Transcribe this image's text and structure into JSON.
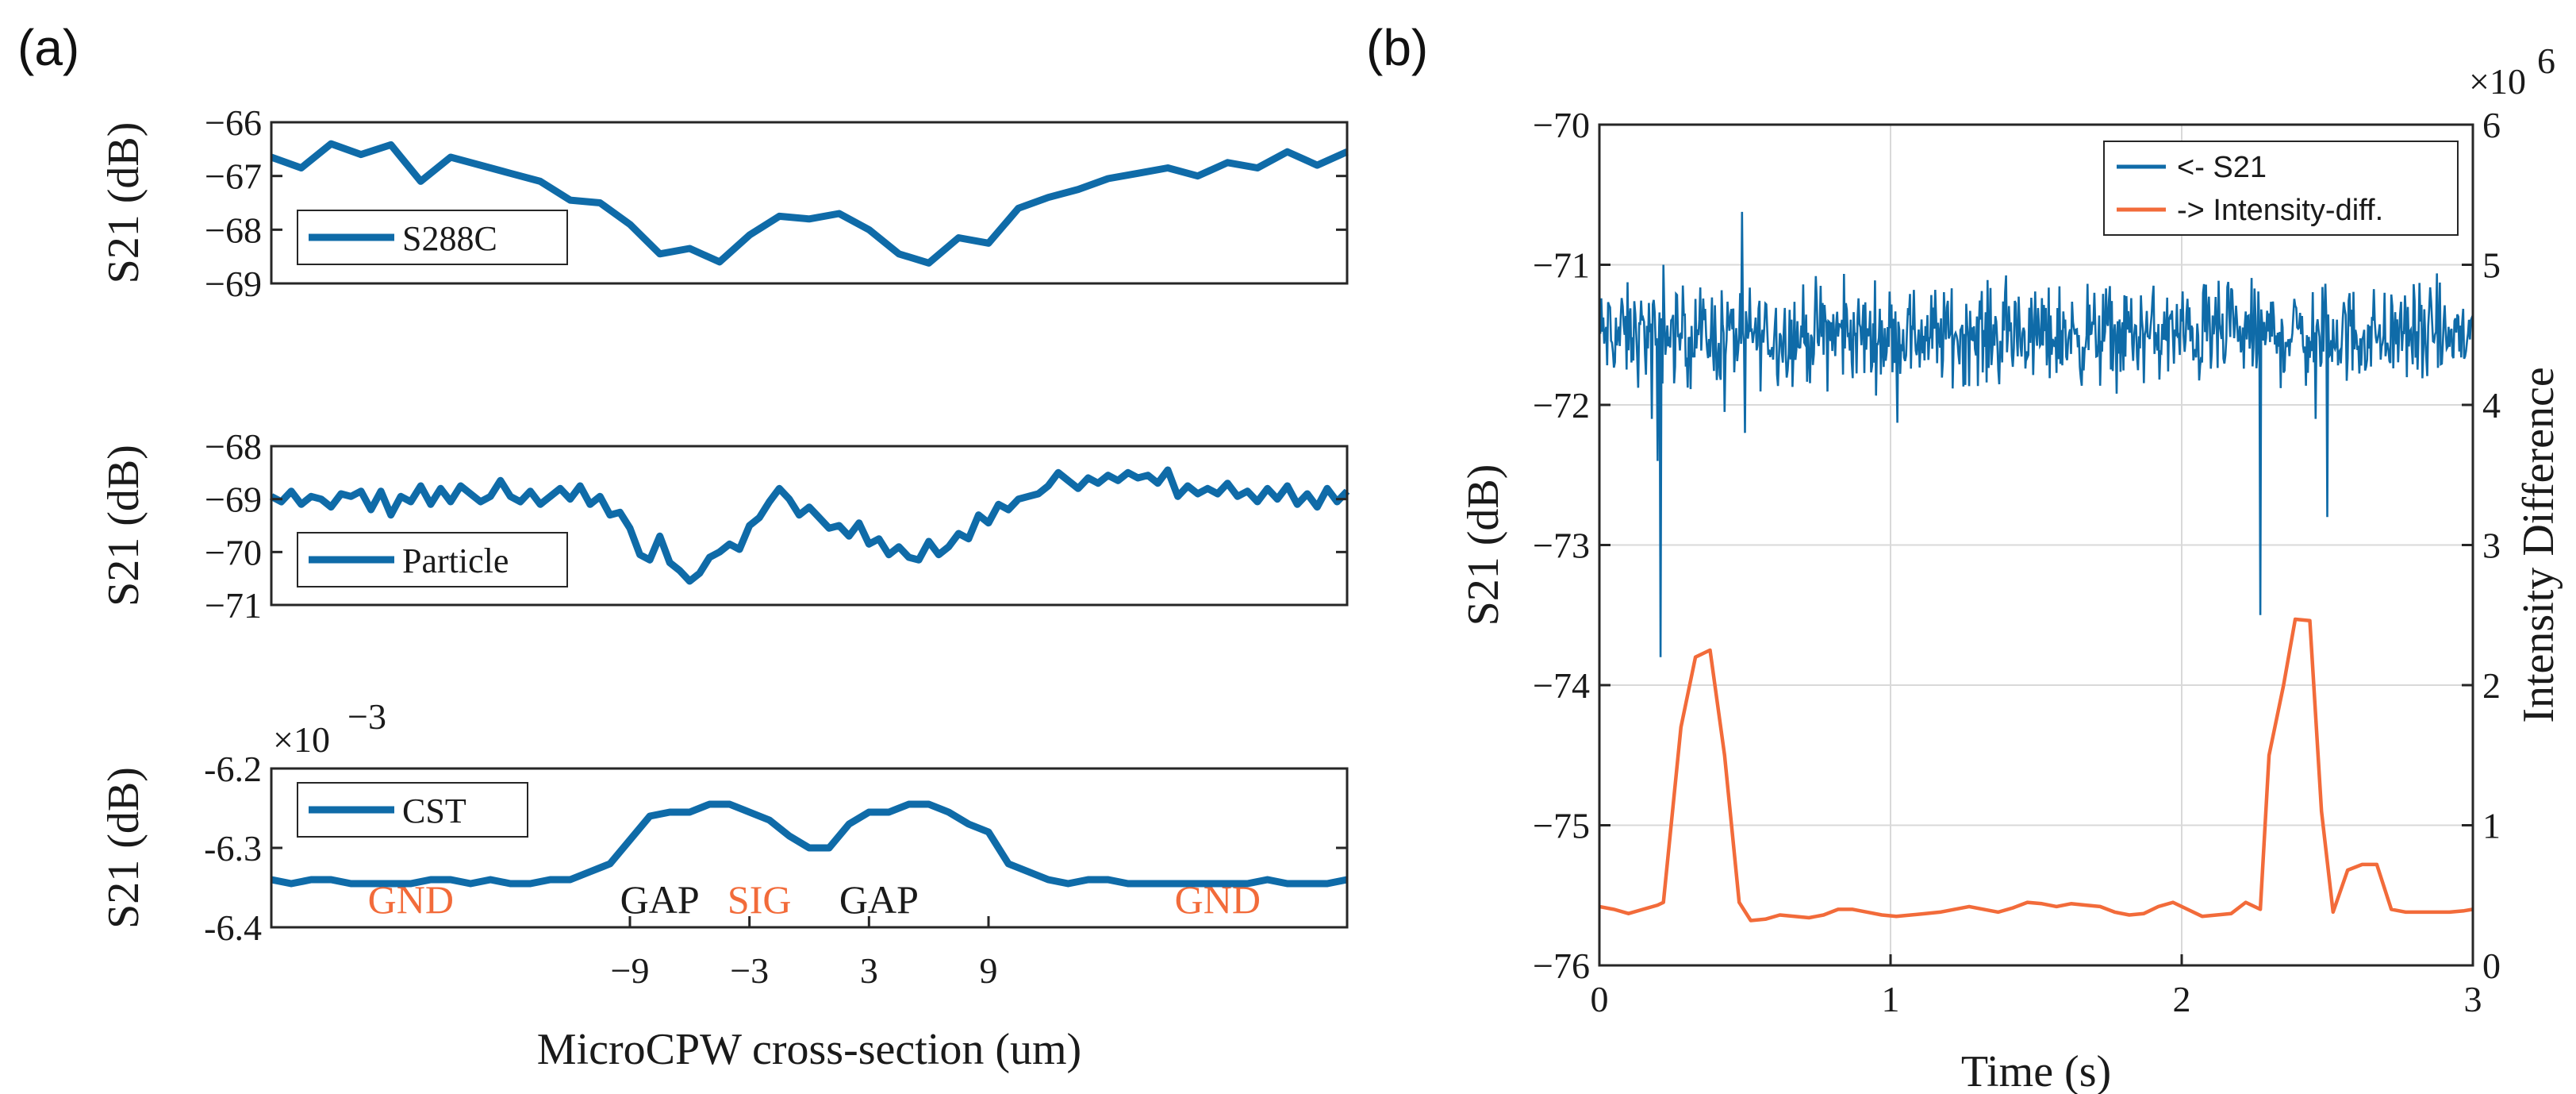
{
  "figure": {
    "panel_a_label": "(a)",
    "panel_b_label": "(b)"
  },
  "colors": {
    "blue": "#0f6ba8",
    "orange": "#f26b3a",
    "annotation_orange": "#f26b3a",
    "annotation_black": "#1a1a1a"
  },
  "chart_data": [
    {
      "id": "s288c",
      "type": "line",
      "title": "",
      "ylabel": "S21 (dB)",
      "xlabel": "",
      "xlim": [
        -27,
        27
      ],
      "ylim": [
        -69,
        -66
      ],
      "yticks": [
        -66,
        -67,
        -68,
        -69
      ],
      "ytick_labels": [
        "−66",
        "−67",
        "−68",
        "−69"
      ],
      "legend": "S288C",
      "legend_position": "left",
      "series": [
        {
          "name": "S288C",
          "x": [
            -27,
            -25.5,
            -24,
            -22.5,
            -21,
            -19.5,
            -18,
            -16.5,
            -15,
            -13.5,
            -12,
            -10.5,
            -9,
            -7.5,
            -6,
            -4.5,
            -3,
            -1.5,
            0,
            1.5,
            3,
            4.5,
            6,
            7.5,
            9,
            10.5,
            12,
            13.5,
            15,
            16.5,
            18,
            19.5,
            21,
            22.5,
            24,
            25.5,
            27
          ],
          "values": [
            -66.65,
            -66.85,
            -66.4,
            -66.6,
            -66.42,
            -67.1,
            -66.65,
            -66.8,
            -66.95,
            -67.1,
            -67.45,
            -67.5,
            -67.9,
            -68.45,
            -68.35,
            -68.6,
            -68.1,
            -67.75,
            -67.8,
            -67.7,
            -68.0,
            -68.45,
            -68.62,
            -68.15,
            -68.25,
            -67.6,
            -67.4,
            -67.25,
            -67.05,
            -66.95,
            -66.85,
            -67.0,
            -66.75,
            -66.85,
            -66.55,
            -66.8,
            -66.55
          ]
        }
      ]
    },
    {
      "id": "particle",
      "type": "line",
      "title": "",
      "ylabel": "S21 (dB)",
      "xlabel": "",
      "xlim": [
        -27,
        27
      ],
      "ylim": [
        -71,
        -68
      ],
      "yticks": [
        -68,
        -69,
        -70,
        -71
      ],
      "ytick_labels": [
        "−68",
        "−69",
        "−70",
        "−71"
      ],
      "legend": "Particle",
      "legend_position": "left",
      "series": [
        {
          "name": "Particle",
          "x": [
            -27,
            -26.5,
            -26,
            -25.5,
            -25,
            -24.5,
            -24,
            -23.5,
            -23,
            -22.5,
            -22,
            -21.5,
            -21,
            -20.5,
            -20,
            -19.5,
            -19,
            -18.5,
            -18,
            -17.5,
            -17,
            -16.5,
            -16,
            -15.5,
            -15,
            -14.5,
            -14,
            -13.5,
            -13,
            -12.5,
            -12,
            -11.5,
            -11,
            -10.5,
            -10,
            -9.5,
            -9,
            -8.5,
            -8,
            -7.5,
            -7,
            -6.5,
            -6,
            -5.5,
            -5,
            -4.5,
            -4,
            -3.5,
            -3,
            -2.5,
            -2,
            -1.5,
            -1,
            -0.5,
            0,
            0.5,
            1,
            1.5,
            2,
            2.5,
            3,
            3.5,
            4,
            4.5,
            5,
            5.5,
            6,
            6.5,
            7,
            7.5,
            8,
            8.5,
            9,
            9.5,
            10,
            10.5,
            11,
            11.5,
            12,
            12.5,
            13,
            13.5,
            14,
            14.5,
            15,
            15.5,
            16,
            16.5,
            17,
            17.5,
            18,
            18.5,
            19,
            19.5,
            20,
            20.5,
            21,
            21.5,
            22,
            22.5,
            23,
            23.5,
            24,
            24.5,
            25,
            25.5,
            26,
            26.5,
            27
          ],
          "values": [
            -68.95,
            -69.05,
            -68.85,
            -69.1,
            -68.95,
            -69.0,
            -69.15,
            -68.9,
            -68.95,
            -68.85,
            -69.2,
            -68.85,
            -69.3,
            -68.95,
            -69.05,
            -68.75,
            -69.1,
            -68.8,
            -69.05,
            -68.75,
            -68.9,
            -69.05,
            -68.95,
            -68.65,
            -68.95,
            -69.05,
            -68.85,
            -69.1,
            -68.95,
            -68.8,
            -69.0,
            -68.75,
            -69.1,
            -68.95,
            -69.3,
            -69.25,
            -69.55,
            -70.05,
            -70.15,
            -69.7,
            -70.2,
            -70.35,
            -70.55,
            -70.4,
            -70.1,
            -70.0,
            -69.85,
            -69.95,
            -69.5,
            -69.35,
            -69.05,
            -68.8,
            -69.0,
            -69.3,
            -69.15,
            -69.35,
            -69.55,
            -69.5,
            -69.7,
            -69.45,
            -69.85,
            -69.75,
            -70.05,
            -69.9,
            -70.1,
            -70.15,
            -69.8,
            -70.05,
            -69.9,
            -69.65,
            -69.75,
            -69.3,
            -69.45,
            -69.1,
            -69.2,
            -69.0,
            -68.95,
            -68.9,
            -68.75,
            -68.5,
            -68.65,
            -68.8,
            -68.6,
            -68.7,
            -68.55,
            -68.65,
            -68.5,
            -68.6,
            -68.55,
            -68.7,
            -68.45,
            -68.95,
            -68.75,
            -68.9,
            -68.8,
            -68.9,
            -68.7,
            -68.95,
            -68.85,
            -69.05,
            -68.8,
            -69.0,
            -68.75,
            -69.1,
            -68.9,
            -69.15,
            -68.8,
            -69.05,
            -68.85
          ],
          "note": ""
        }
      ]
    },
    {
      "id": "cst",
      "type": "line",
      "title": "",
      "ylabel": "S21 (dB)",
      "xlabel": "MicroCPW cross-section (um)",
      "xlim": [
        -27,
        27
      ],
      "ylim": [
        -6.4,
        -6.2
      ],
      "yticks": [
        -6.2,
        -6.3,
        -6.4
      ],
      "ytick_labels": [
        "-6.2",
        "-6.3",
        "-6.4"
      ],
      "exponent_label": "×10",
      "exponent_power": "−3",
      "xticks": [
        -9,
        -3,
        3,
        9
      ],
      "xtick_labels": [
        "−9",
        "−3",
        "3",
        "9"
      ],
      "legend": "CST",
      "legend_position": "left",
      "annotations": [
        {
          "text": "GND",
          "x": -20,
          "color_key": "annotation_orange"
        },
        {
          "text": "GAP",
          "x": -7.5,
          "color_key": "annotation_black"
        },
        {
          "text": "SIG",
          "x": -2.5,
          "color_key": "annotation_orange"
        },
        {
          "text": "GAP",
          "x": 3.5,
          "color_key": "annotation_black"
        },
        {
          "text": "GND",
          "x": 20.5,
          "color_key": "annotation_orange"
        }
      ],
      "series": [
        {
          "name": "CST",
          "x": [
            -27,
            -26,
            -25,
            -24,
            -23,
            -22,
            -21,
            -20,
            -19,
            -18,
            -17,
            -16,
            -15,
            -14,
            -13,
            -12,
            -11,
            -10,
            -9,
            -8,
            -7,
            -6,
            -5,
            -4,
            -3,
            -2,
            -1,
            0,
            1,
            2,
            3,
            4,
            5,
            6,
            7,
            8,
            9,
            10,
            11,
            12,
            13,
            14,
            15,
            16,
            17,
            18,
            19,
            20,
            21,
            22,
            23,
            24,
            25,
            26,
            27
          ],
          "values": [
            -6.34,
            -6.345,
            -6.34,
            -6.34,
            -6.345,
            -6.345,
            -6.345,
            -6.345,
            -6.34,
            -6.34,
            -6.345,
            -6.34,
            -6.345,
            -6.345,
            -6.34,
            -6.34,
            -6.33,
            -6.32,
            -6.29,
            -6.26,
            -6.255,
            -6.255,
            -6.245,
            -6.245,
            -6.255,
            -6.265,
            -6.285,
            -6.3,
            -6.3,
            -6.27,
            -6.255,
            -6.255,
            -6.245,
            -6.245,
            -6.255,
            -6.27,
            -6.28,
            -6.32,
            -6.33,
            -6.34,
            -6.345,
            -6.34,
            -6.34,
            -6.345,
            -6.345,
            -6.345,
            -6.345,
            -6.345,
            -6.345,
            -6.345,
            -6.34,
            -6.345,
            -6.345,
            -6.345,
            -6.34
          ]
        }
      ]
    },
    {
      "id": "timeseries",
      "type": "line",
      "title": "",
      "xlabel": "Time (s)",
      "ylabel": "S21 (dB)",
      "ylabel_right": "Intensity Difference",
      "xlim": [
        0,
        3
      ],
      "ylim": [
        -76,
        -70
      ],
      "ylim_right": [
        0,
        6
      ],
      "xticks": [
        0,
        1,
        2,
        3
      ],
      "xtick_labels": [
        "0",
        "1",
        "2",
        "3"
      ],
      "yticks": [
        -70,
        -71,
        -72,
        -73,
        -74,
        -75,
        -76
      ],
      "ytick_labels": [
        "−70",
        "−71",
        "−72",
        "−73",
        "−74",
        "−75",
        "−76"
      ],
      "yticks_right": [
        0,
        1,
        2,
        3,
        4,
        5,
        6
      ],
      "ytick_labels_right": [
        "0",
        "1",
        "2",
        "3",
        "4",
        "5",
        "6"
      ],
      "right_exponent_label": "×10",
      "right_exponent_power": "6",
      "grid": true,
      "legend_position": "top-right",
      "noise": {
        "series": "<- S21",
        "center": -71.5,
        "amplitude": 0.28,
        "samples": 900
      },
      "series": [
        {
          "name": "<- S21",
          "axis": "left",
          "spikes": [
            {
              "x": 0.18,
              "value": -72.1
            },
            {
              "x": 0.2,
              "value": -72.4
            },
            {
              "x": 0.21,
              "value": -73.8
            },
            {
              "x": 0.22,
              "value": -71.0
            },
            {
              "x": 0.43,
              "value": -72.05
            },
            {
              "x": 0.5,
              "value": -72.2
            },
            {
              "x": 2.27,
              "value": -73.5
            },
            {
              "x": 2.46,
              "value": -72.1
            },
            {
              "x": 2.5,
              "value": -72.8
            }
          ]
        },
        {
          "name": "-> Intensity-diff.",
          "axis": "right",
          "x": [
            0,
            0.05,
            0.1,
            0.15,
            0.2,
            0.22,
            0.28,
            0.33,
            0.38,
            0.43,
            0.48,
            0.52,
            0.57,
            0.62,
            0.67,
            0.72,
            0.77,
            0.82,
            0.87,
            0.92,
            0.97,
            1.02,
            1.07,
            1.12,
            1.17,
            1.22,
            1.27,
            1.32,
            1.37,
            1.42,
            1.47,
            1.52,
            1.57,
            1.62,
            1.67,
            1.72,
            1.77,
            1.82,
            1.87,
            1.92,
            1.97,
            2.02,
            2.07,
            2.12,
            2.17,
            2.22,
            2.27,
            2.3,
            2.35,
            2.39,
            2.44,
            2.48,
            2.52,
            2.57,
            2.62,
            2.67,
            2.72,
            2.77,
            2.82,
            2.87,
            2.92,
            2.97,
            3.0
          ],
          "values": [
            0.42,
            0.4,
            0.37,
            0.4,
            0.43,
            0.45,
            1.7,
            2.2,
            2.25,
            1.5,
            0.45,
            0.32,
            0.33,
            0.36,
            0.35,
            0.34,
            0.36,
            0.4,
            0.4,
            0.38,
            0.36,
            0.35,
            0.36,
            0.37,
            0.38,
            0.4,
            0.42,
            0.4,
            0.38,
            0.41,
            0.45,
            0.44,
            0.42,
            0.44,
            0.43,
            0.42,
            0.38,
            0.36,
            0.37,
            0.42,
            0.45,
            0.4,
            0.35,
            0.36,
            0.37,
            0.45,
            0.4,
            1.5,
            2.0,
            2.47,
            2.46,
            1.1,
            0.38,
            0.68,
            0.72,
            0.72,
            0.4,
            0.38,
            0.38,
            0.38,
            0.38,
            0.39,
            0.4
          ]
        }
      ]
    }
  ]
}
